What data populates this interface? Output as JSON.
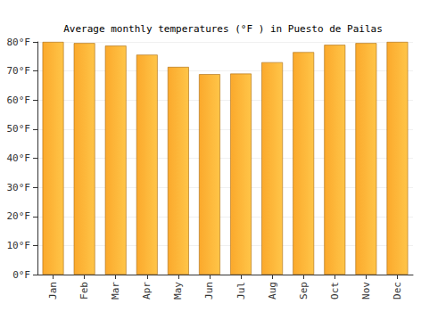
{
  "chart_data": {
    "type": "bar",
    "title": "Average monthly temperatures (°F ) in Puesto de Pailas",
    "categories": [
      "Jan",
      "Feb",
      "Mar",
      "Apr",
      "May",
      "Jun",
      "Jul",
      "Aug",
      "Sep",
      "Oct",
      "Nov",
      "Dec"
    ],
    "values": [
      80,
      79.6,
      78.7,
      75.6,
      71.4,
      68.9,
      69.1,
      73,
      76.5,
      79,
      79.6,
      80
    ],
    "color": "#fba92c",
    "ylim": [
      0,
      80
    ],
    "yticks": [
      {
        "value": 0,
        "label": "0°F"
      },
      {
        "value": 10,
        "label": "10°F"
      },
      {
        "value": 20,
        "label": "20°F"
      },
      {
        "value": 30,
        "label": "30°F"
      },
      {
        "value": 40,
        "label": "40°F"
      },
      {
        "value": 50,
        "label": "50°F"
      },
      {
        "value": 60,
        "label": "60°F"
      },
      {
        "value": 70,
        "label": "70°F"
      },
      {
        "value": 80,
        "label": "80°F"
      }
    ],
    "grid": true
  }
}
